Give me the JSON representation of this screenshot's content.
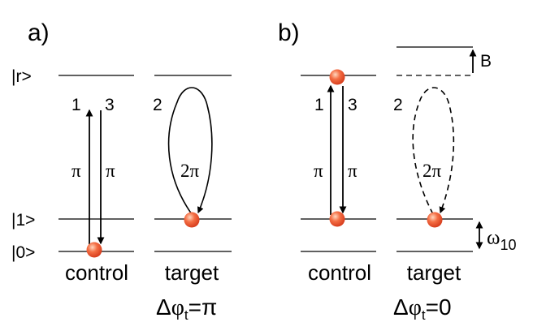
{
  "panel_a": {
    "label": "a)",
    "states": {
      "rydberg": "|r>",
      "one": "|1>",
      "zero": "|0>"
    },
    "steps": {
      "s1": "1",
      "s2": "2",
      "s3": "3"
    },
    "pulses": {
      "pi1": "π",
      "pi3": "π",
      "two_pi": "2π"
    },
    "atoms": {
      "control": "control",
      "target": "target"
    },
    "phase": {
      "delta": "Δ",
      "phi": "φ",
      "sub": "t",
      "value": "=π"
    }
  },
  "panel_b": {
    "label": "b)",
    "shift_label": "B",
    "steps": {
      "s1": "1",
      "s2": "2",
      "s3": "3"
    },
    "pulses": {
      "pi1": "π",
      "pi3": "π",
      "two_pi": "2π"
    },
    "spacing": {
      "omega": "ω",
      "sub": "10"
    },
    "atoms": {
      "control": "control",
      "target": "target"
    },
    "phase": {
      "delta": "Δ",
      "phi": "φ",
      "sub": "t",
      "value": "=0"
    }
  },
  "colors": {
    "atom_fill": "#f05030",
    "atom_highlight": "#ffc9a8",
    "line": "#000000"
  }
}
